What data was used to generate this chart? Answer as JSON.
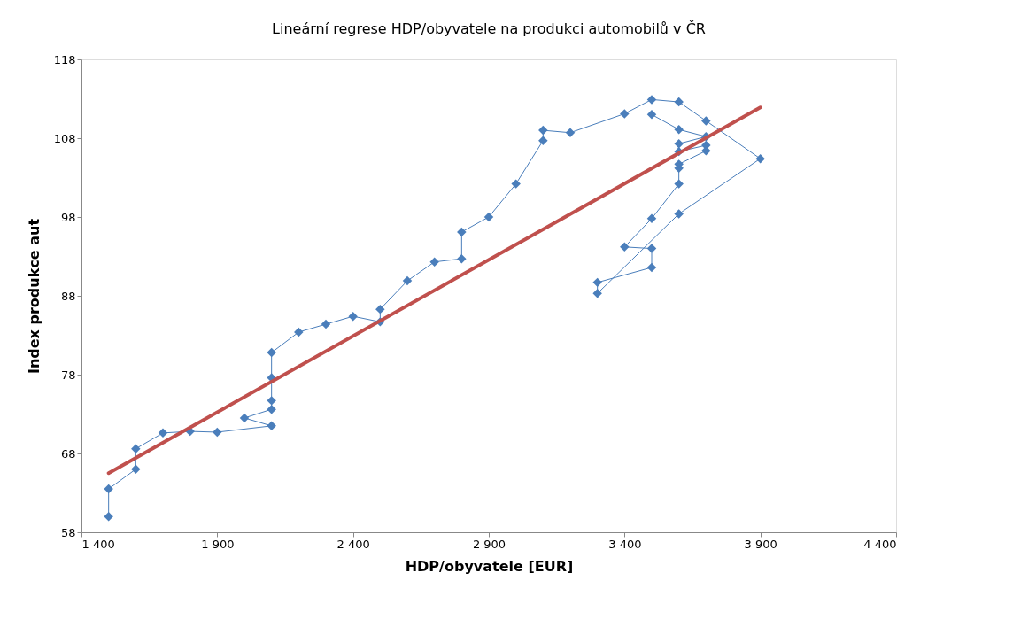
{
  "chart_data": {
    "type": "line",
    "title": "Lineární regrese HDP/obyvatele na produkci automobilů v ČR",
    "xlabel": "HDP/obyvatele [EUR]",
    "ylabel": "Index produkce aut",
    "xlim": [
      1400,
      4400
    ],
    "xticks": [
      {
        "value": 1400,
        "label": "1 400"
      },
      {
        "value": 1900,
        "label": "1 900"
      },
      {
        "value": 2400,
        "label": "2 400"
      },
      {
        "value": 2900,
        "label": "2 900"
      },
      {
        "value": 3400,
        "label": "3 400"
      },
      {
        "value": 3900,
        "label": "3 900"
      },
      {
        "value": 4400,
        "label": "4 400"
      }
    ],
    "ylim": [
      58,
      118
    ],
    "yticks": [
      58,
      68,
      78,
      88,
      98,
      108,
      118
    ],
    "grid": false,
    "marker": "diamond",
    "line_style": "solid",
    "series": [
      {
        "type": "line",
        "color": "#4a7ebb",
        "x": [
          1500,
          1500,
          1600,
          1600,
          1700,
          1800,
          1900,
          2100,
          2000,
          2100,
          2100,
          2100,
          2100,
          2200,
          2300,
          2400,
          2500,
          2500,
          2600,
          2700,
          2800,
          2800,
          2900,
          3000,
          3100,
          3100,
          3200,
          3400,
          3500,
          3600,
          3700,
          3900,
          3600,
          3300,
          3300,
          3500,
          3500,
          3400,
          3500,
          3600,
          3600,
          3600,
          3700,
          3700,
          3600,
          3600,
          3700,
          3600,
          3500
        ],
        "values": [
          60,
          63.5,
          66,
          68.6,
          70.6,
          70.8,
          70.7,
          71.5,
          72.5,
          73.6,
          74.7,
          77.6,
          80.8,
          83.4,
          84.4,
          85.4,
          84.7,
          86.3,
          89.9,
          92.3,
          92.7,
          96.1,
          98,
          102.2,
          107.7,
          109,
          108.7,
          111.1,
          112.9,
          112.6,
          110.2,
          105.4,
          98.4,
          88.3,
          89.7,
          91.6,
          94,
          94.2,
          97.8,
          102.2,
          104.2,
          104.7,
          106.4,
          107.1,
          106.3,
          107.3,
          108.2,
          109.1,
          111
        ]
      },
      {
        "type": "line",
        "color": "#c0504d",
        "marker": "none",
        "x": [
          1500,
          3900
        ],
        "values": [
          65.5,
          111.9
        ]
      }
    ]
  }
}
